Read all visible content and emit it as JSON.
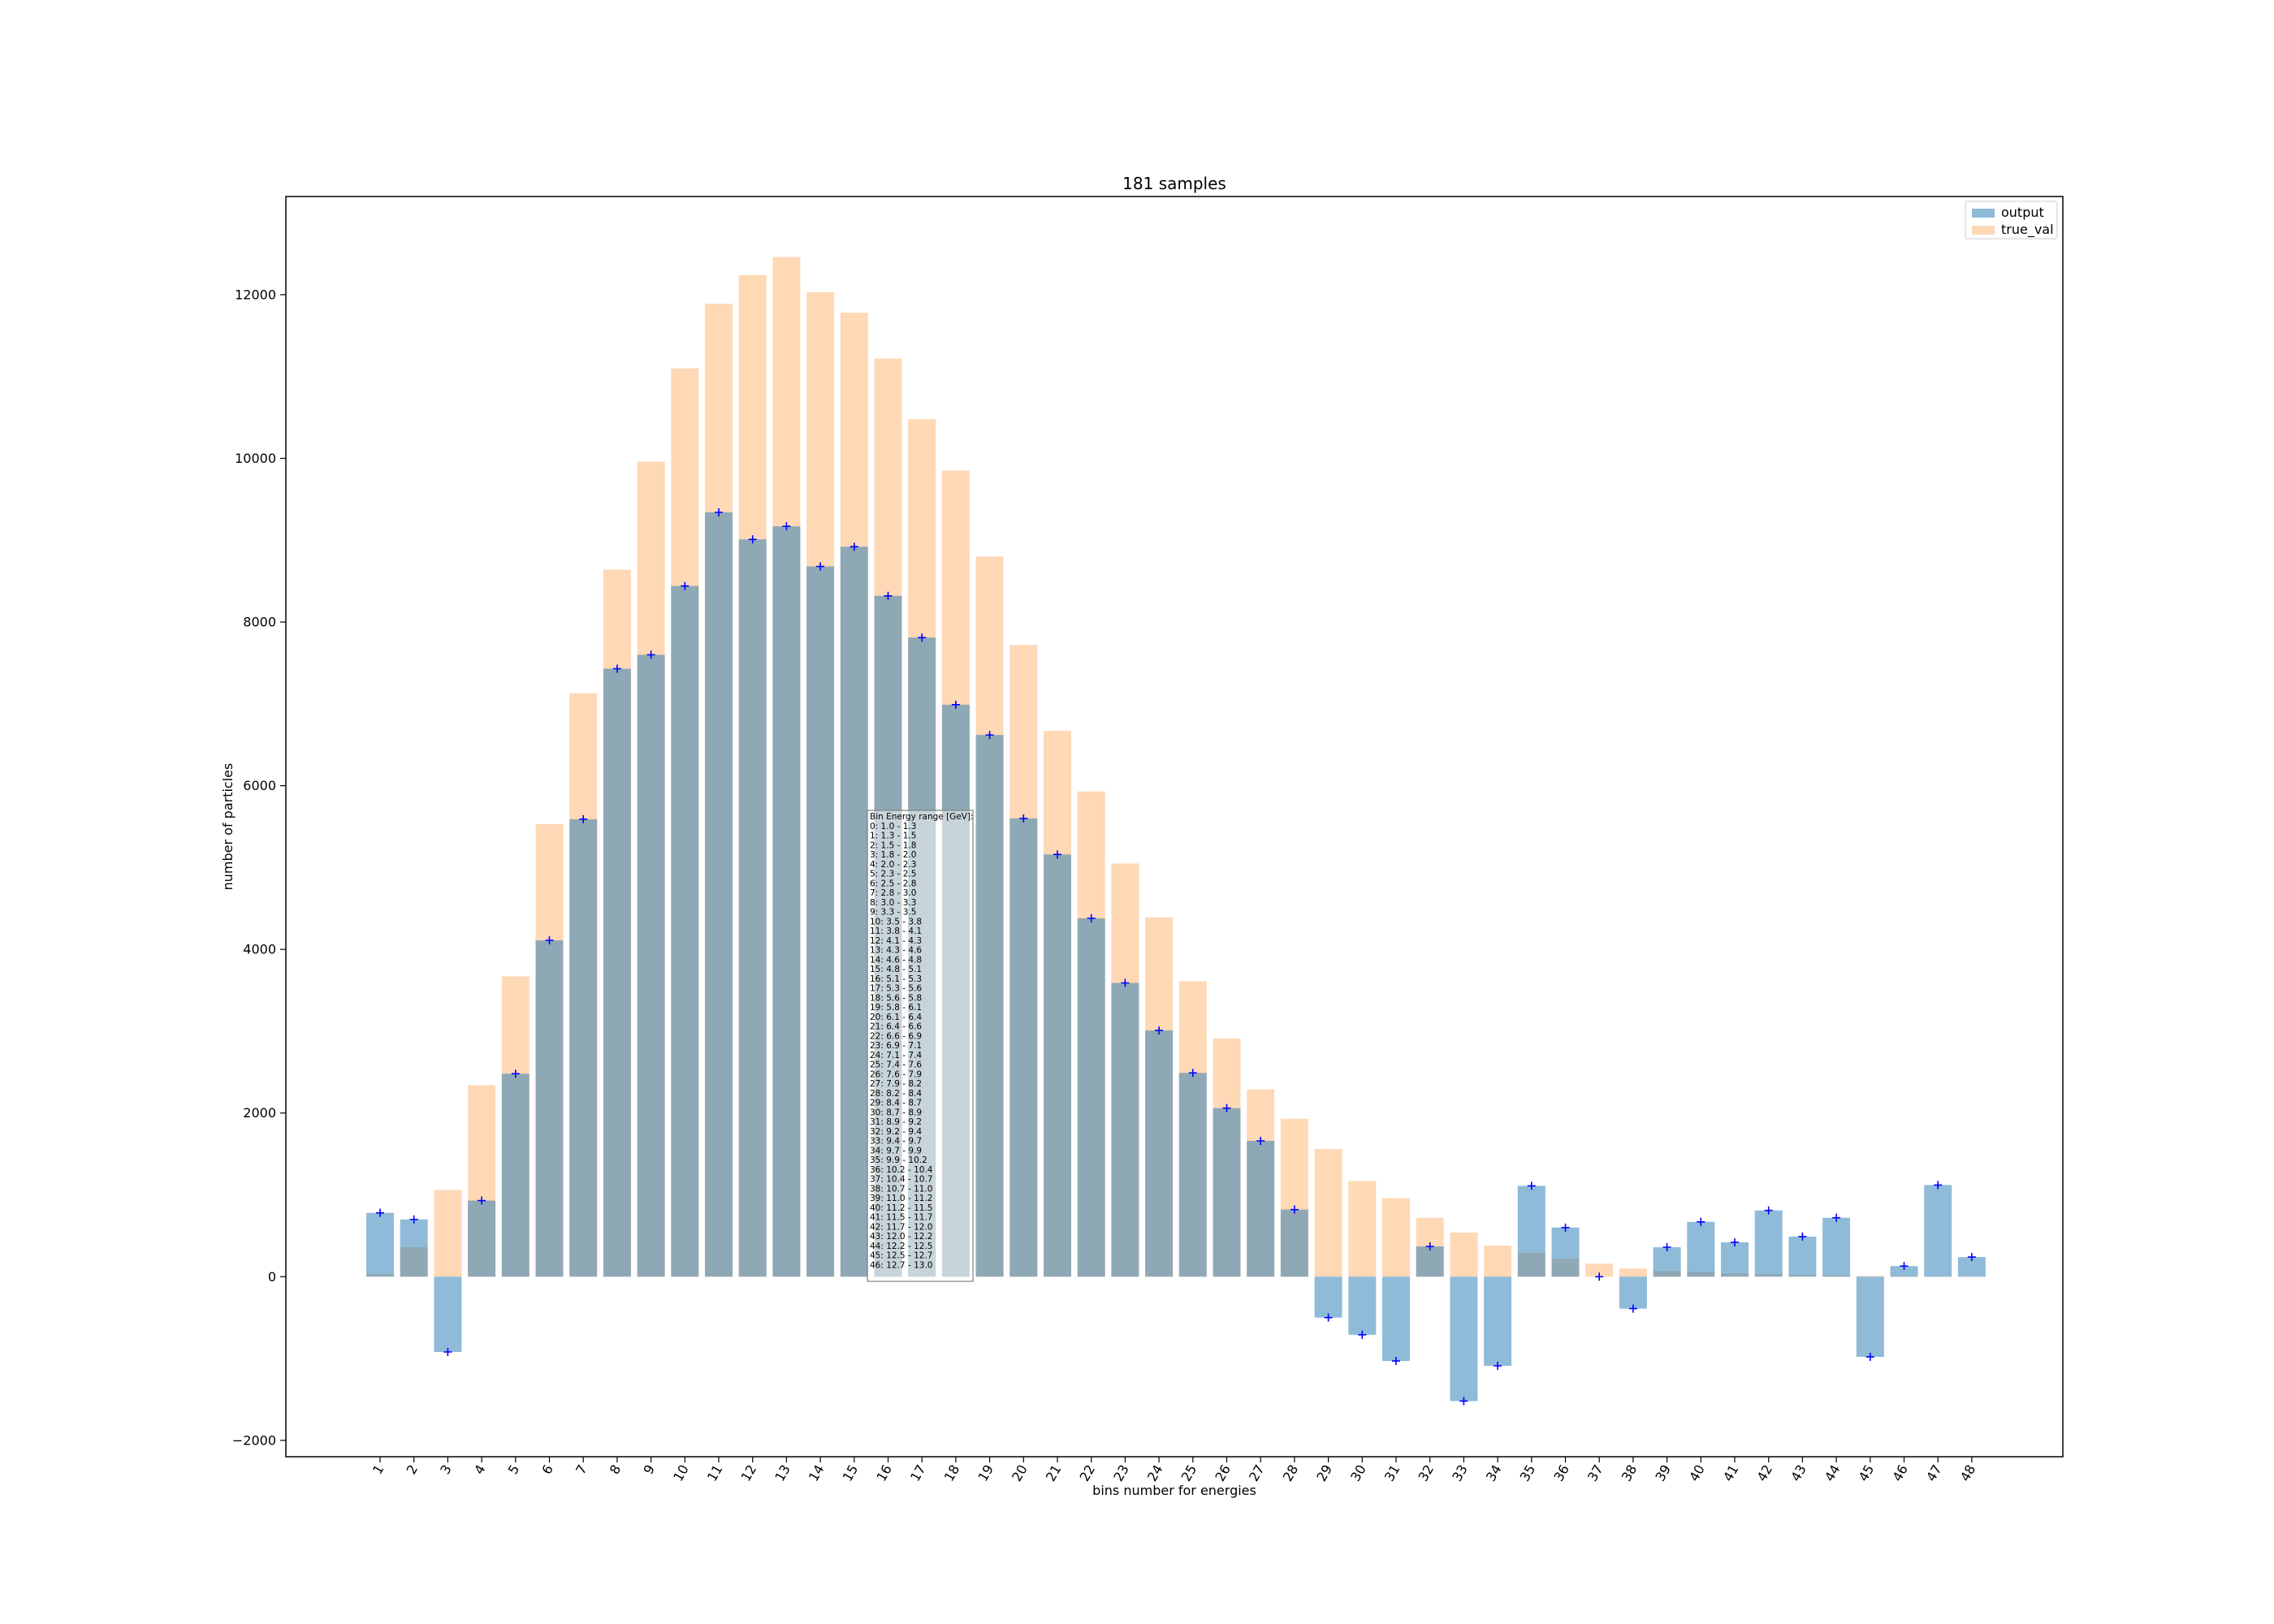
{
  "chart_data": {
    "type": "bar",
    "title": "181 samples",
    "xlabel": "bins number for energies",
    "ylabel": "number of particles",
    "ylim": [
      -2200,
      13200
    ],
    "yticks": [
      -2000,
      0,
      2000,
      4000,
      6000,
      8000,
      10000,
      12000
    ],
    "grid": false,
    "legend_position": "top-right",
    "categories": [
      "1",
      "2",
      "3",
      "4",
      "5",
      "6",
      "7",
      "8",
      "9",
      "10",
      "11",
      "12",
      "13",
      "14",
      "15",
      "16",
      "17",
      "18",
      "19",
      "20",
      "21",
      "22",
      "23",
      "24",
      "25",
      "26",
      "27",
      "28",
      "29",
      "30",
      "31",
      "32",
      "33",
      "34",
      "35",
      "36",
      "37",
      "38",
      "39",
      "40",
      "41",
      "42",
      "43",
      "44",
      "45",
      "46",
      "47",
      "48"
    ],
    "series": [
      {
        "name": "output",
        "color": "#1f77b4",
        "opacity": 0.5,
        "values": [
          780,
          700,
          -920,
          930,
          2480,
          4110,
          5590,
          7430,
          7600,
          8440,
          9340,
          9010,
          9170,
          8680,
          8920,
          8320,
          7810,
          6990,
          6620,
          5600,
          5160,
          4380,
          3590,
          3010,
          2490,
          2060,
          1660,
          820,
          -500,
          -710,
          -1030,
          370,
          -1520,
          -1090,
          1110,
          600,
          0,
          -390,
          360,
          670,
          420,
          810,
          490,
          720,
          -980,
          130,
          1120,
          240
        ]
      },
      {
        "name": "true_val",
        "color": "#ff7f0e",
        "opacity": 0.3,
        "values": [
          30,
          360,
          1060,
          2340,
          3670,
          5530,
          7130,
          8640,
          9960,
          11100,
          11890,
          12240,
          12460,
          12030,
          11780,
          11220,
          10480,
          9850,
          8800,
          7720,
          6670,
          5930,
          5050,
          4390,
          3610,
          2910,
          2290,
          1930,
          1560,
          1170,
          960,
          720,
          540,
          380,
          290,
          220,
          160,
          100,
          70,
          60,
          40,
          30,
          20,
          15,
          10,
          5,
          5,
          3
        ]
      }
    ],
    "markers": {
      "series": "output",
      "symbol": "+",
      "color": "#0000ff"
    },
    "legend": [
      "output",
      "true_val"
    ],
    "annotation": {
      "title": "Bin Energy range [GeV]:",
      "lines": [
        "0: 1.0 - 1.3",
        "1: 1.3 - 1.5",
        "2: 1.5 - 1.8",
        "3: 1.8 - 2.0",
        "4: 2.0 - 2.3",
        "5: 2.3 - 2.5",
        "6: 2.5 - 2.8",
        "7: 2.8 - 3.0",
        "8: 3.0 - 3.3",
        "9: 3.3 - 3.5",
        "10: 3.5 - 3.8",
        "11: 3.8 - 4.1",
        "12: 4.1 - 4.3",
        "13: 4.3 - 4.6",
        "14: 4.6 - 4.8",
        "15: 4.8 - 5.1",
        "16: 5.1 - 5.3",
        "17: 5.3 - 5.6",
        "18: 5.6 - 5.8",
        "19: 5.8 - 6.1",
        "20: 6.1 - 6.4",
        "21: 6.4 - 6.6",
        "22: 6.6 - 6.9",
        "23: 6.9 - 7.1",
        "24: 7.1 - 7.4",
        "25: 7.4 - 7.6",
        "26: 7.6 - 7.9",
        "27: 7.9 - 8.2",
        "28: 8.2 - 8.4",
        "29: 8.4 - 8.7",
        "30: 8.7 - 8.9",
        "31: 8.9 - 9.2",
        "32: 9.2 - 9.4",
        "33: 9.4 - 9.7",
        "34: 9.7 - 9.9",
        "35: 9.9 - 10.2",
        "36: 10.2 - 10.4",
        "37: 10.4 - 10.7",
        "38: 10.7 - 11.0",
        "39: 11.0 - 11.2",
        "40: 11.2 - 11.5",
        "41: 11.5 - 11.7",
        "42: 11.7 - 12.0",
        "43: 12.0 - 12.2",
        "44: 12.2 - 12.5",
        "45: 12.5 - 12.7",
        "46: 12.7 - 13.0"
      ]
    }
  }
}
